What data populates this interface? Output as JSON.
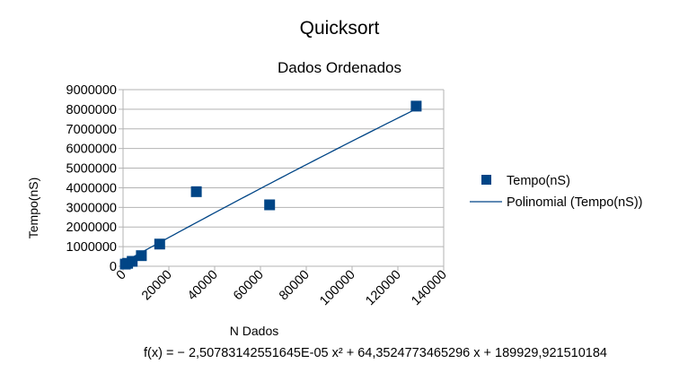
{
  "chart_data": {
    "type": "scatter",
    "title": "Quicksort",
    "subtitle": "Dados Ordenados",
    "xlabel": "N Dados",
    "ylabel": "Tempo(nS)",
    "xlim": [
      0,
      140000
    ],
    "ylim": [
      0,
      9000000
    ],
    "x_ticks": [
      "0",
      "20000",
      "40000",
      "60000",
      "80000",
      "100000",
      "120000",
      "140000"
    ],
    "y_ticks": [
      "0",
      "1000000",
      "2000000",
      "3000000",
      "4000000",
      "5000000",
      "6000000",
      "7000000",
      "8000000",
      "9000000"
    ],
    "grid": true,
    "legend_position": "right",
    "series": [
      {
        "name": "Tempo(nS)",
        "kind": "points",
        "marker": "square",
        "color": "#004586",
        "points": [
          {
            "x": 1000,
            "y": 110000
          },
          {
            "x": 2000,
            "y": 150000
          },
          {
            "x": 4000,
            "y": 250000
          },
          {
            "x": 8000,
            "y": 540000
          },
          {
            "x": 16000,
            "y": 1130000
          },
          {
            "x": 32000,
            "y": 3800000
          },
          {
            "x": 64000,
            "y": 3130000
          },
          {
            "x": 128000,
            "y": 8160000
          }
        ]
      },
      {
        "name": "Polinomial (Tempo(nS))",
        "kind": "trendline",
        "color": "#004586",
        "coefficients": {
          "a": -2.50783142551645e-05,
          "b": 64.3524773465296,
          "c": 189929.921510184
        },
        "x_range": [
          1000,
          128000
        ]
      }
    ],
    "annotation": "f(x) = − 2,50783142551645E-05 x² + 64,3524773465296 x + 189929,921510184"
  }
}
